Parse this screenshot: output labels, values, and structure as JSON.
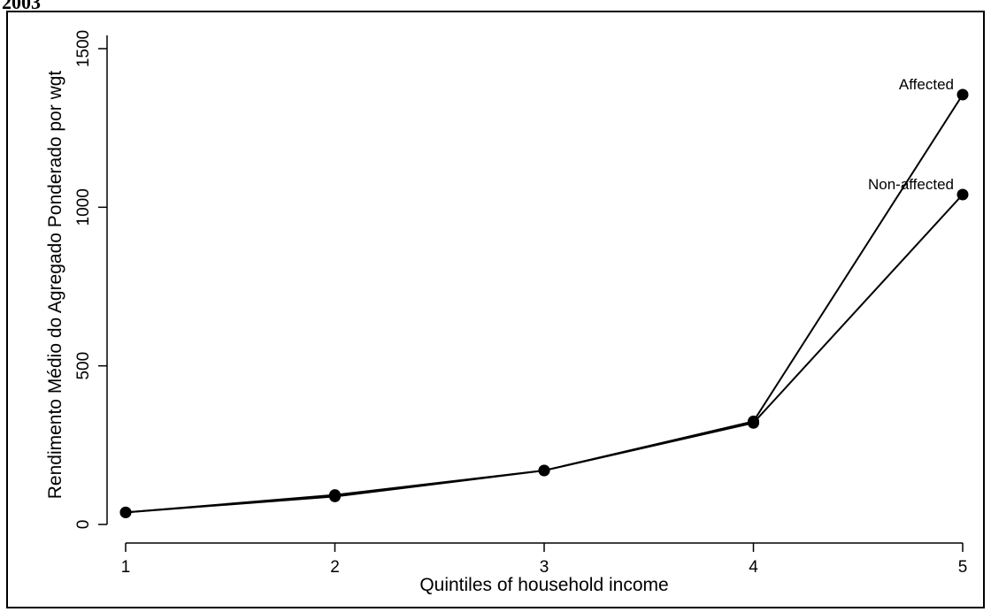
{
  "header": {
    "text": "2003"
  },
  "chart_data": {
    "type": "line",
    "x": [
      1,
      2,
      3,
      4,
      5
    ],
    "xlabel": "Quintiles of household income",
    "ylabel": "Rendimento Médio do Agregado Ponderado por wgt",
    "xlim": [
      1,
      5
    ],
    "ylim": [
      0,
      1500
    ],
    "xticks": [
      "1",
      "2",
      "3",
      "4",
      "5"
    ],
    "yticks": [
      0,
      500,
      1000,
      1500
    ],
    "grid": false,
    "series": [
      {
        "name": "Affected",
        "values": [
          38,
          93,
          170,
          325,
          1355
        ],
        "color": "#000000"
      },
      {
        "name": "Non-affected",
        "values": [
          38,
          88,
          170,
          320,
          1040
        ],
        "color": "#000000"
      }
    ]
  }
}
